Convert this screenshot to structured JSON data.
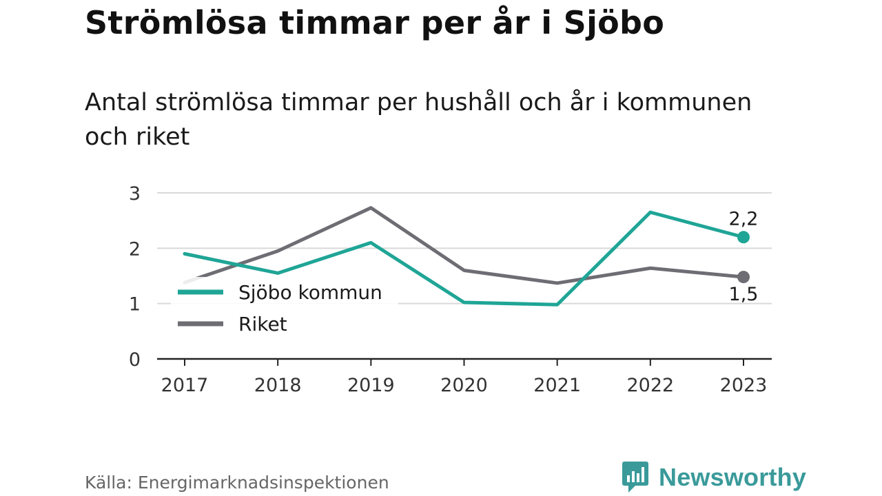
{
  "title": "Strömlösa timmar per år i Sjöbo",
  "subtitle": "Antal strömlösa timmar per hushåll och år i kommunen och riket",
  "source": "Källa: Energimarknadsinspektionen",
  "brand": {
    "name": "Newsworthy",
    "icon": "newsworthy-logo-icon",
    "color": "#3a9a9a"
  },
  "chart_data": {
    "type": "line",
    "x": [
      "2017",
      "2018",
      "2019",
      "2020",
      "2021",
      "2022",
      "2023"
    ],
    "series": [
      {
        "name": "Sjöbo kommun",
        "color": "#1fa596",
        "values": [
          1.9,
          1.55,
          2.1,
          1.02,
          0.98,
          2.65,
          2.2
        ],
        "end_label": "2,2"
      },
      {
        "name": "Riket",
        "color": "#6e6d74",
        "values": [
          1.38,
          1.95,
          2.73,
          1.6,
          1.37,
          1.64,
          1.48
        ],
        "end_label": "1,5"
      }
    ],
    "y_ticks": [
      "0",
      "1",
      "2",
      "3"
    ],
    "ylim": [
      0,
      3
    ],
    "grid": true,
    "legend": "inside-left"
  }
}
